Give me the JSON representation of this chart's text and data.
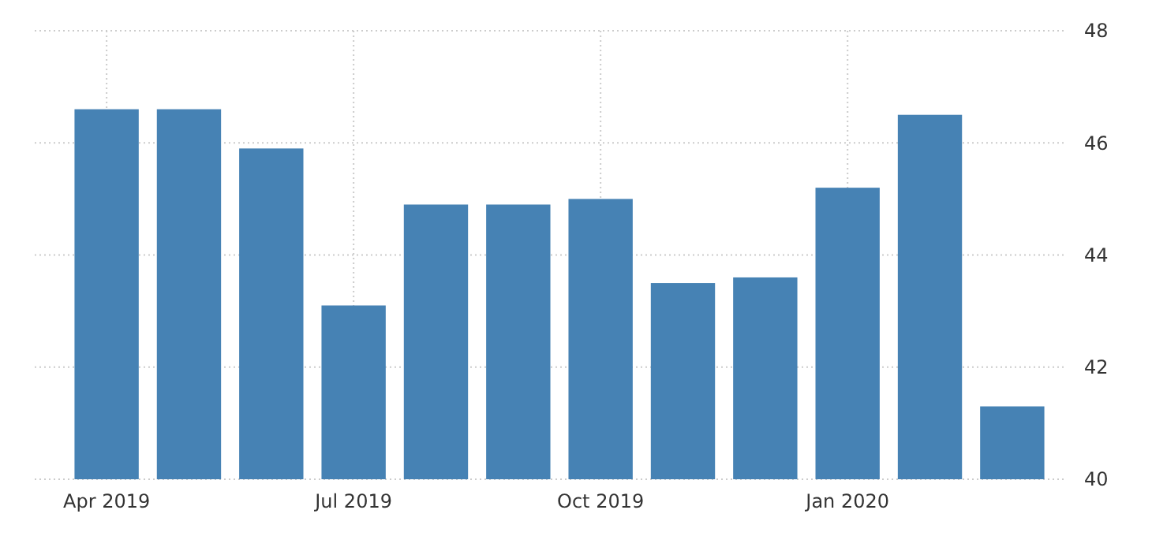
{
  "chart_data": {
    "type": "bar",
    "categories": [
      "Apr 2019",
      null,
      null,
      "Jul 2019",
      null,
      null,
      "Oct 2019",
      null,
      null,
      "Jan 2020",
      null,
      null
    ],
    "values": [
      46.6,
      46.6,
      45.9,
      43.1,
      44.9,
      44.9,
      45.0,
      43.5,
      43.6,
      45.2,
      46.5,
      41.3
    ],
    "color": "#4682b4",
    "ylim": [
      40,
      48
    ],
    "yticks": [
      40,
      42,
      44,
      46,
      48
    ],
    "grid": true
  }
}
